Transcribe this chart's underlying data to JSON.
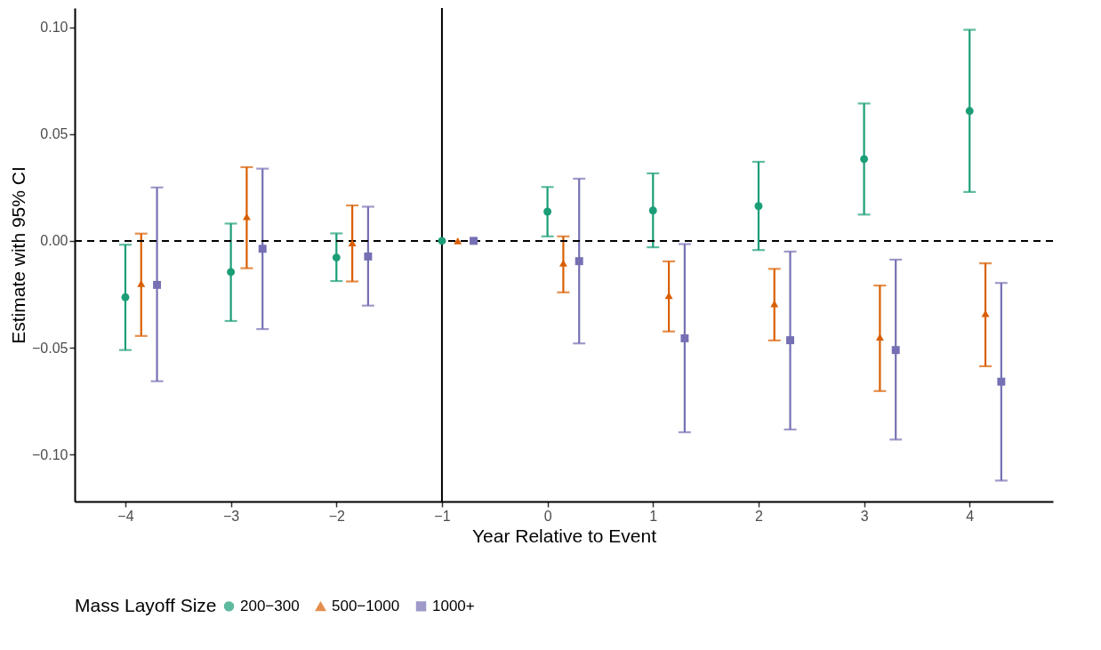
{
  "chart_data": {
    "type": "scatter",
    "xlabel": "Year Relative to Event",
    "ylabel": "Estimate with 95% CI",
    "legend_title": "Mass Layoff Size",
    "legend": "bottom",
    "grid": false,
    "xlim": [
      -4.48,
      4.79
    ],
    "ylim": [
      -0.122,
      0.109
    ],
    "xticks": [
      {
        "value": -4,
        "label": "−4"
      },
      {
        "value": -3,
        "label": "−3"
      },
      {
        "value": -2,
        "label": "−2"
      },
      {
        "value": -1,
        "label": "−1"
      },
      0,
      1,
      2,
      3,
      4
    ],
    "yticks": [
      {
        "value": -0.1,
        "label": "−0.10"
      },
      {
        "value": -0.05,
        "label": "−0.05"
      },
      {
        "value": 0,
        "label": "0.00"
      },
      {
        "value": 0.05,
        "label": "0.05"
      },
      {
        "value": 0.1,
        "label": "0.10"
      }
    ],
    "ref_lines": [
      {
        "axis": "x",
        "value": -1,
        "label": null,
        "color": "#000000",
        "line_style": "solid"
      },
      {
        "axis": "y",
        "value": 0,
        "label": null,
        "color": "#000000",
        "line_style": "dashed"
      }
    ],
    "series": [
      {
        "name": "200−300",
        "color": "#1b9e77",
        "marker": "circle",
        "x": [
          -4,
          -3,
          -2,
          -1,
          0,
          1,
          2,
          3,
          4
        ],
        "values": [
          -0.0264,
          -0.0146,
          -0.0078,
          0,
          0.0137,
          0.0142,
          0.0163,
          0.0383,
          0.0608
        ],
        "errors": [
          [
            -0.0511,
            -0.0018
          ],
          [
            -0.0375,
            0.0081
          ],
          [
            -0.0188,
            0.0035
          ],
          null,
          [
            0.0021,
            0.0252
          ],
          [
            -0.003,
            0.0316
          ],
          [
            -0.0043,
            0.037
          ],
          [
            0.0123,
            0.0643
          ],
          [
            0.0229,
            0.0988
          ]
        ]
      },
      {
        "name": "500−1000",
        "color": "#d95f02",
        "marker": "triangle",
        "x": [
          -3.85,
          -2.85,
          -1.85,
          -0.85,
          0.15,
          1.15,
          2.15,
          3.15,
          4.15
        ],
        "values": [
          -0.02,
          0.0113,
          -0.0009,
          0,
          -0.0104,
          -0.0256,
          -0.0294,
          -0.0451,
          -0.034
        ],
        "errors": [
          [
            -0.0445,
            0.0034
          ],
          [
            -0.0128,
            0.0345
          ],
          [
            -0.019,
            0.0166
          ],
          null,
          [
            -0.0241,
            0.0021
          ],
          [
            -0.0424,
            -0.0096
          ],
          [
            -0.0466,
            -0.0131
          ],
          [
            -0.0703,
            -0.0209
          ],
          [
            -0.0587,
            -0.0105
          ]
        ]
      },
      {
        "name": "1000+",
        "color": "#7570b3",
        "marker": "square",
        "x": [
          -3.7,
          -2.7,
          -1.7,
          -0.7,
          0.3,
          1.3,
          2.3,
          3.3,
          4.3
        ],
        "values": [
          -0.0206,
          -0.0037,
          -0.0073,
          0,
          -0.0095,
          -0.0456,
          -0.0465,
          -0.0511,
          -0.0659
        ],
        "errors": [
          [
            -0.0657,
            0.025
          ],
          [
            -0.0413,
            0.0338
          ],
          [
            -0.0303,
            0.016
          ],
          null,
          [
            -0.048,
            0.0291
          ],
          [
            -0.0896,
            -0.0015
          ],
          [
            -0.0883,
            -0.005
          ],
          [
            -0.093,
            -0.0088
          ],
          [
            -0.1122,
            -0.0197
          ]
        ]
      }
    ]
  }
}
